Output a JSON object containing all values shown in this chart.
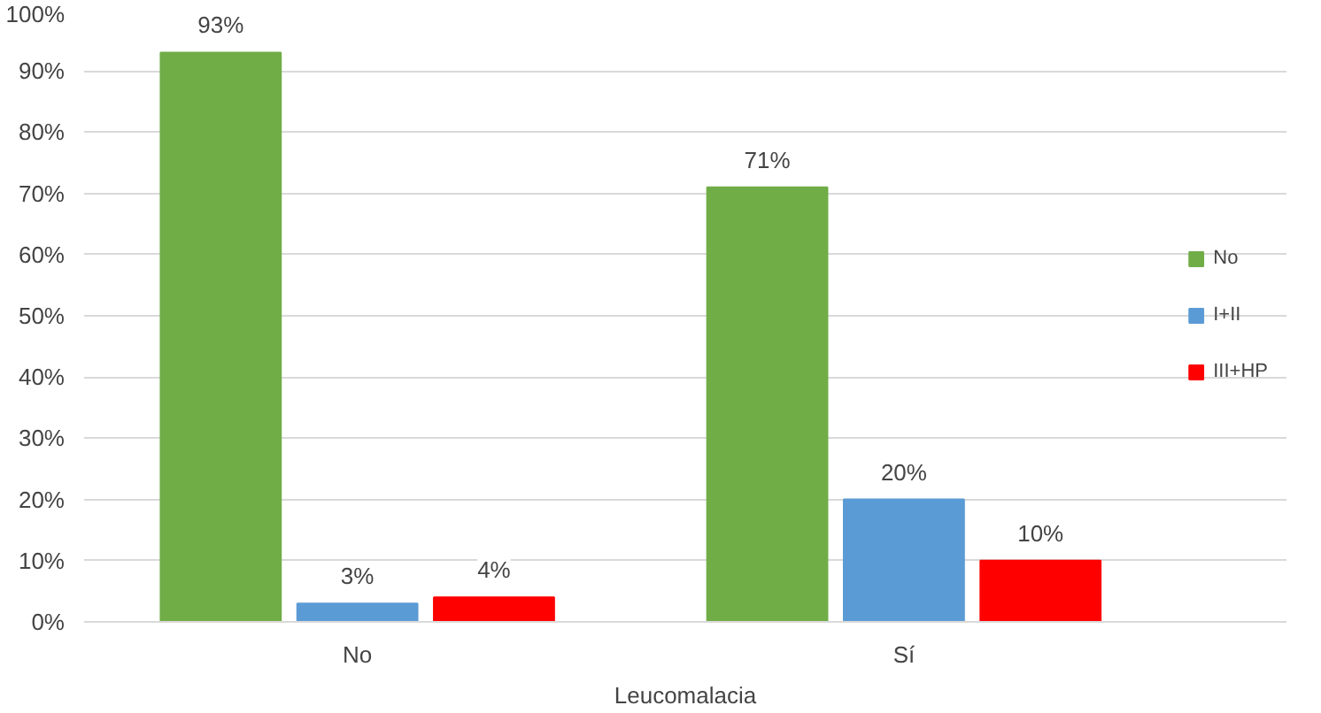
{
  "chart_data": {
    "type": "bar",
    "xlabel": "Leucomalacia",
    "categories": [
      "No",
      "Sí"
    ],
    "series": [
      {
        "name": "No",
        "color": "#70ad47",
        "values": [
          93,
          71
        ]
      },
      {
        "name": "I+II",
        "color": "#5b9bd5",
        "values": [
          3,
          20
        ]
      },
      {
        "name": "III+HP",
        "color": "#ff0000",
        "values": [
          4,
          10
        ]
      }
    ],
    "ylim": [
      0,
      100
    ],
    "yticks": [
      {
        "value": 0,
        "label": "0%"
      },
      {
        "value": 10,
        "label": "10%"
      },
      {
        "value": 20,
        "label": "20%"
      },
      {
        "value": 30,
        "label": "30%"
      },
      {
        "value": 40,
        "label": "40%"
      },
      {
        "value": 50,
        "label": "50%"
      },
      {
        "value": 60,
        "label": "60%"
      },
      {
        "value": 70,
        "label": "70%"
      },
      {
        "value": 80,
        "label": "80%"
      },
      {
        "value": 90,
        "label": "90%"
      },
      {
        "value": 100,
        "label": "100%"
      }
    ],
    "value_labels": [
      [
        "93%",
        "71%"
      ],
      [
        "3%",
        "20%"
      ],
      [
        "4%",
        "10%"
      ]
    ],
    "grid": "y",
    "legend": "right"
  }
}
